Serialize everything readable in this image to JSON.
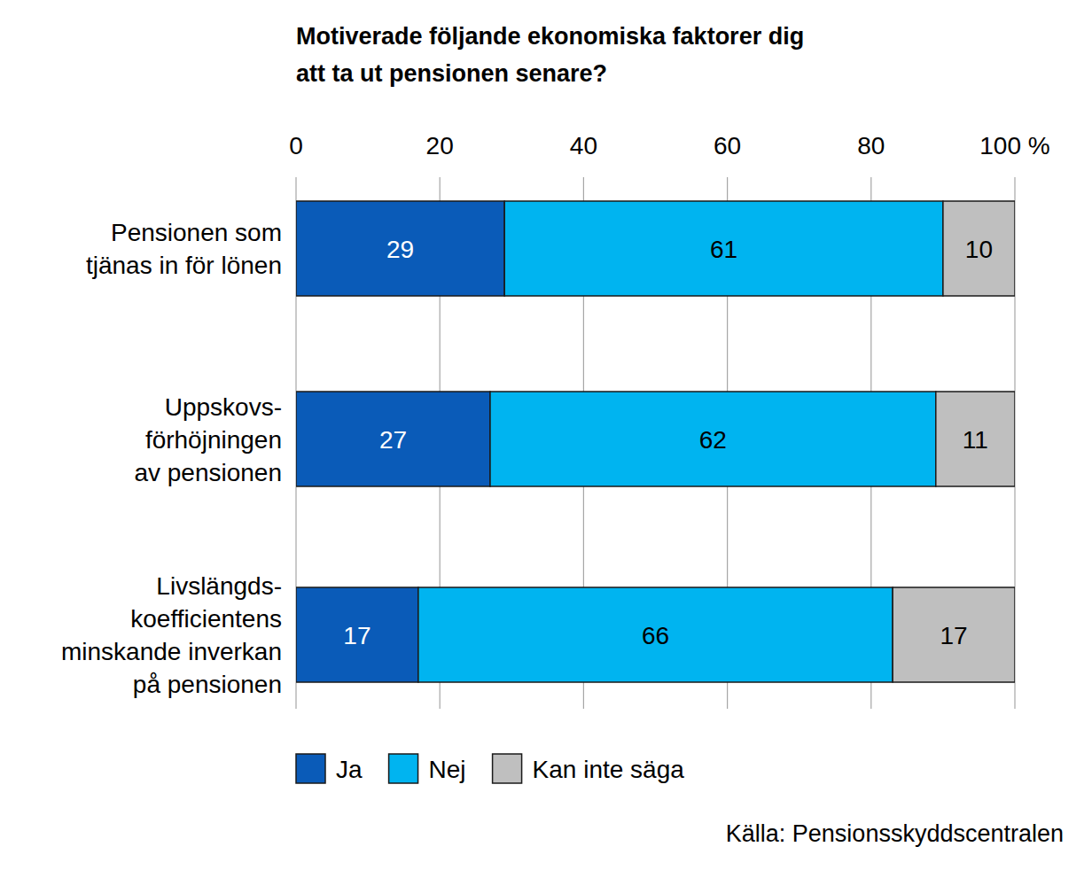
{
  "chart_data": {
    "type": "bar",
    "orientation": "horizontal",
    "stacked": true,
    "title": "Motiverade följande ekonomiska faktorer dig\natt ta ut pensionen senare?",
    "categories": [
      "Pensionen som\ntjänas in för lönen",
      "Uppskovs-\nförhöjningen\nav pensionen",
      "Livslängds-\nkoefficientens\nminskande inverkan\npå pensionen"
    ],
    "series": [
      {
        "name": "Ja",
        "color": "#0a5bb8",
        "values": [
          29,
          27,
          17
        ]
      },
      {
        "name": "Nej",
        "color": "#00b4f0",
        "values": [
          61,
          62,
          66
        ]
      },
      {
        "name": "Kan inte säga",
        "color": "#bfbfbf",
        "values": [
          10,
          11,
          17
        ]
      }
    ],
    "xlim": [
      0,
      100
    ],
    "xticks": [
      0,
      20,
      40,
      60,
      80,
      {
        "value": 100,
        "label": "100 %"
      }
    ],
    "grid": true,
    "data_labels": true,
    "legend": "bottom",
    "source": "Källa: Pensionsskyddscentralen"
  }
}
